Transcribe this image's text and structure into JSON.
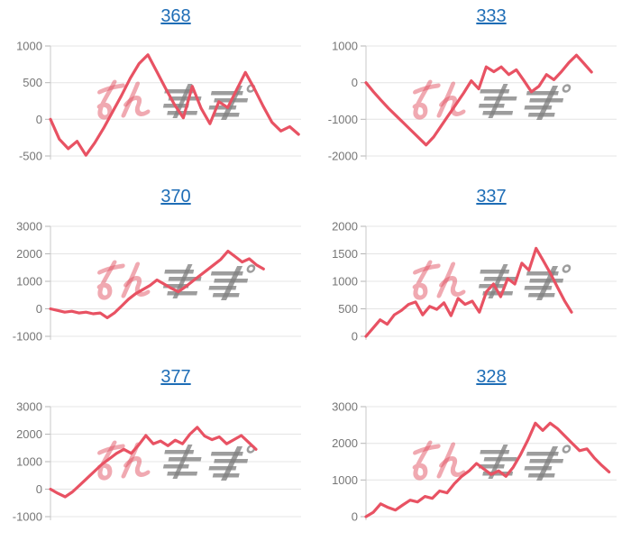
{
  "colors": {
    "background": "#ffffff",
    "line": "#e85263",
    "grid": "#e4e4e4",
    "axis": "#c9c9c9",
    "tick_mark": "#b5b5b5",
    "tick_label": "#767676",
    "link": "#1e6db6",
    "watermark_pink": "rgba(226,84,100,0.5)",
    "watermark_gray": "rgba(130,130,130,0.78)"
  },
  "watermark": {
    "text": "みんレポ"
  },
  "chart_data": [
    {
      "type": "line",
      "title": "368",
      "ylabel": "",
      "xlabel": "",
      "grid": true,
      "legend": false,
      "ylim": [
        -500,
        1000
      ],
      "y_ticks": [
        1000,
        500,
        0,
        -500
      ],
      "span": 0.99,
      "values": [
        0,
        -270,
        -400,
        -300,
        -490,
        -320,
        -120,
        100,
        320,
        560,
        760,
        880,
        650,
        420,
        200,
        20,
        450,
        150,
        -60,
        240,
        160,
        400,
        640,
        420,
        180,
        -40,
        -160,
        -100,
        -205
      ]
    },
    {
      "type": "line",
      "title": "333",
      "ylabel": "",
      "xlabel": "",
      "grid": true,
      "legend": false,
      "ylim": [
        -2000,
        1000
      ],
      "y_ticks": [
        1000,
        0,
        -1000,
        -2000
      ],
      "span": 0.9,
      "values": [
        0,
        -250,
        -480,
        -700,
        -900,
        -1100,
        -1300,
        -1500,
        -1700,
        -1480,
        -1180,
        -880,
        -580,
        -280,
        50,
        -170,
        430,
        300,
        430,
        220,
        350,
        60,
        -250,
        -100,
        220,
        80,
        300,
        550,
        750,
        520,
        290
      ]
    },
    {
      "type": "line",
      "title": "370",
      "ylabel": "",
      "xlabel": "",
      "grid": true,
      "legend": false,
      "ylim": [
        -1000,
        3000
      ],
      "y_ticks": [
        3000,
        2000,
        1000,
        0,
        -1000
      ],
      "span": 0.85,
      "values": [
        0,
        -60,
        -120,
        -90,
        -150,
        -120,
        -180,
        -150,
        -325,
        -150,
        100,
        350,
        550,
        700,
        850,
        1050,
        900,
        750,
        620,
        800,
        1000,
        1200,
        1400,
        1600,
        1800,
        2100,
        1900,
        1700,
        1820,
        1600,
        1450
      ]
    },
    {
      "type": "line",
      "title": "337",
      "ylabel": "",
      "xlabel": "",
      "grid": true,
      "legend": false,
      "ylim": [
        0,
        2000
      ],
      "y_ticks": [
        2000,
        1500,
        1000,
        500,
        0
      ],
      "span": 0.82,
      "values": [
        0,
        150,
        300,
        220,
        390,
        470,
        580,
        625,
        390,
        545,
        490,
        610,
        375,
        690,
        580,
        640,
        440,
        810,
        950,
        720,
        1050,
        950,
        1330,
        1200,
        1600,
        1380,
        1150,
        900,
        650,
        440
      ]
    },
    {
      "type": "line",
      "title": "377",
      "ylabel": "",
      "xlabel": "",
      "grid": true,
      "legend": false,
      "ylim": [
        -1000,
        3000
      ],
      "y_ticks": [
        3000,
        2000,
        1000,
        0,
        -1000
      ],
      "span": 0.82,
      "values": [
        0,
        -150,
        -280,
        -100,
        150,
        400,
        650,
        900,
        1100,
        1300,
        1450,
        1300,
        1600,
        1950,
        1650,
        1750,
        1580,
        1780,
        1650,
        2000,
        2250,
        1930,
        1800,
        1900,
        1650,
        1800,
        1950,
        1700,
        1450
      ]
    },
    {
      "type": "line",
      "title": "328",
      "ylabel": "",
      "xlabel": "",
      "grid": true,
      "legend": false,
      "ylim": [
        0,
        3000
      ],
      "y_ticks": [
        3000,
        2000,
        1000,
        0
      ],
      "span": 0.97,
      "values": [
        0,
        120,
        350,
        250,
        180,
        320,
        450,
        400,
        550,
        500,
        700,
        650,
        900,
        1100,
        1250,
        1450,
        1300,
        1150,
        1250,
        1100,
        1350,
        1700,
        2100,
        2550,
        2350,
        2550,
        2400,
        2200,
        2000,
        1800,
        1850,
        1600,
        1400,
        1220
      ]
    }
  ]
}
